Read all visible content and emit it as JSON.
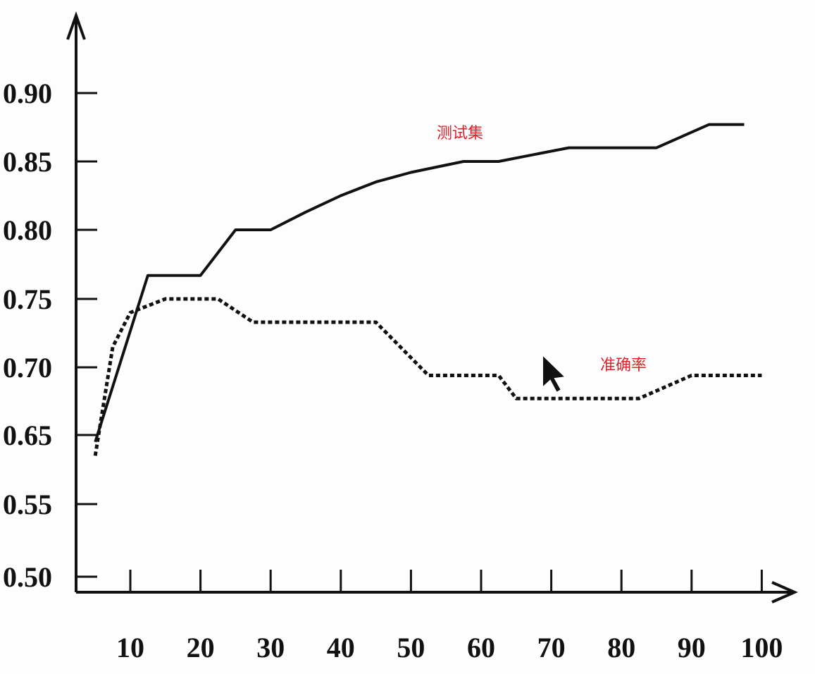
{
  "chart_data": {
    "type": "line",
    "title": "",
    "xlabel": "",
    "ylabel": "",
    "xlim": [
      2,
      100
    ],
    "ylim": [
      0.5,
      0.9
    ],
    "x_ticks": [
      10,
      20,
      30,
      40,
      50,
      60,
      70,
      80,
      90,
      100
    ],
    "x_tick_labels": [
      "10",
      "20",
      "30",
      "40",
      "50",
      "60",
      "70",
      "80",
      "90",
      "100"
    ],
    "y_ticks": [
      0.5,
      0.55,
      0.65,
      0.7,
      0.75,
      0.8,
      0.85,
      0.9
    ],
    "y_tick_labels": [
      "0.50",
      "0.55",
      "0.65",
      "0.70",
      "0.75",
      "0.80",
      "0.85",
      "0.90"
    ],
    "y_axis_note": "tick 0.60 is absent; axis labels are evenly spaced",
    "grid": false,
    "legend": "none",
    "series": [
      {
        "name": "测试集",
        "style": "solid",
        "color": "#111111",
        "x": [
          5,
          12.5,
          20,
          25,
          30,
          35,
          40,
          45,
          50,
          57.5,
          62.5,
          72.5,
          85,
          92.5,
          97.5
        ],
        "y": [
          0.64,
          0.767,
          0.767,
          0.8,
          0.8,
          0.813,
          0.825,
          0.835,
          0.842,
          0.85,
          0.85,
          0.86,
          0.86,
          0.877,
          0.877
        ]
      },
      {
        "name": "准确率",
        "style": "dotted",
        "color": "#111111",
        "x": [
          5,
          7.5,
          10,
          12.5,
          15,
          22.5,
          27.5,
          45,
          52.5,
          62.5,
          65,
          82.5,
          90,
          100
        ],
        "y": [
          0.62,
          0.715,
          0.74,
          0.745,
          0.75,
          0.75,
          0.733,
          0.733,
          0.694,
          0.694,
          0.677,
          0.677,
          0.694,
          0.694
        ]
      }
    ]
  },
  "labels": {
    "test_set": "测试集",
    "accuracy": "准确率"
  }
}
